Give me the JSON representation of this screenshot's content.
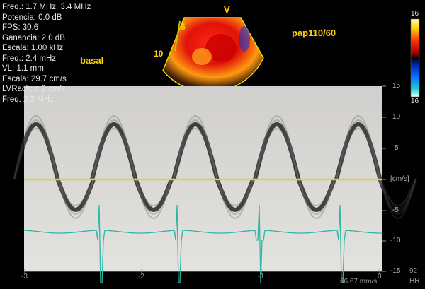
{
  "params": [
    "Freq.: 1.7 MHz. 3.4 MHz",
    "Potencia: 0.0 dB",
    "FPS: 30.6",
    "Ganancia: 2.0 dB",
    "Escala: 1.00 kHz",
    "Freq.: 2.4 mHz",
    "VL: 1.1 mm",
    "Escala: 29.7 cm/s",
    "LVRach: c.2 cm/s",
    "Freq. 2.3 MHz"
  ],
  "labels": {
    "basal": "basal",
    "pressure": "pap110/60",
    "sector_v": "V",
    "depth_5": "5",
    "depth_10": "10"
  },
  "color_scale": {
    "top": "16",
    "bottom": "16"
  },
  "velocity_axis": {
    "ticks": [
      "15",
      "10",
      "5",
      "[cm/s]",
      "-5",
      "-10",
      "-15"
    ]
  },
  "time_axis": {
    "ticks": [
      "-3",
      "-2",
      "-1",
      "0"
    ]
  },
  "sweep_speed": "66.67 mm/s",
  "hr": {
    "value": "92",
    "label": "HR"
  },
  "colors": {
    "baseline": "#d8d24a",
    "ecg": "#2fb7a6",
    "label": "#ffd400"
  }
}
